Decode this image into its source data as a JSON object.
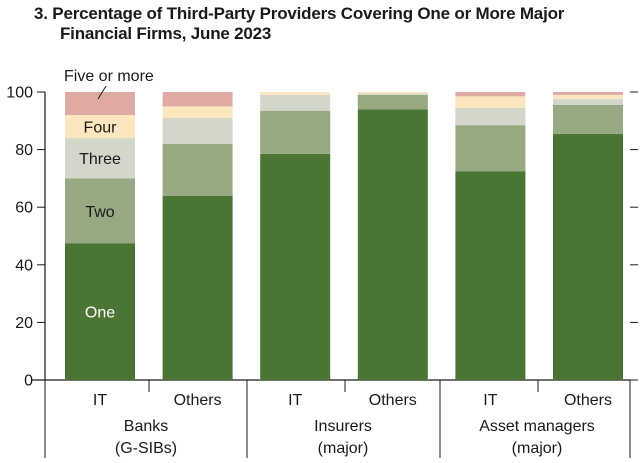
{
  "chart_data": {
    "type": "bar",
    "stacked": true,
    "title_line1": "3. Percentage of Third-Party Providers Covering One or More Major",
    "title_line2": "Financial Firms, June 2023",
    "ylim": [
      0,
      100
    ],
    "yticks": [
      "0",
      "20",
      "40",
      "60",
      "80",
      "100"
    ],
    "categories": [
      "IT",
      "Others",
      "IT",
      "Others",
      "IT",
      "Others"
    ],
    "groups": [
      {
        "line1": "Banks",
        "line2": "(G-SIBs)"
      },
      {
        "line1": "Insurers",
        "line2": "(major)"
      },
      {
        "line1": "Asset managers",
        "line2": "(major)"
      }
    ],
    "series": [
      {
        "name": "One",
        "color": "#4a7535",
        "values": [
          47.5,
          64,
          78.5,
          94,
          72.5,
          85.5
        ]
      },
      {
        "name": "Two",
        "color": "#97a982",
        "values": [
          22.5,
          18,
          15,
          5,
          16,
          10
        ]
      },
      {
        "name": "Three",
        "color": "#d2d7c9",
        "values": [
          14,
          9,
          5.5,
          0.5,
          6,
          2
        ]
      },
      {
        "name": "Four",
        "color": "#fbe6bd",
        "values": [
          8,
          4,
          1,
          0.5,
          4,
          1.5
        ]
      },
      {
        "name": "Five or more",
        "color": "#dfaaa2",
        "values": [
          8,
          5,
          0,
          0,
          1.5,
          1
        ]
      }
    ],
    "labels": [
      "One",
      "Two",
      "Three",
      "Four",
      "Five or more"
    ]
  }
}
